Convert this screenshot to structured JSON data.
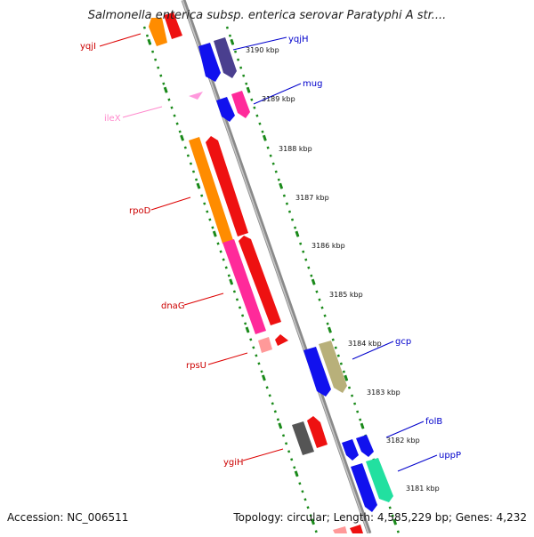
{
  "title": "Salmonella enterica subsp. enterica serovar Paratyphi A str....",
  "footer": {
    "accession": "Accession: NC_006511",
    "summary": "Topology: circular; Length: 4,585,229 bp; Genes: 4,232"
  },
  "scale_labels": [
    "3190 kbp",
    "3189 kbp",
    "3188 kbp",
    "3187 kbp",
    "3186 kbp",
    "3185 kbp",
    "3184 kbp",
    "3183 kbp",
    "3182 kbp",
    "3181 kbp"
  ],
  "genes": {
    "forward": [
      "yqjH",
      "mug",
      "gcp",
      "folB",
      "uppP"
    ],
    "reverse": [
      "yqjI",
      "ileX",
      "rpoD",
      "dnaG",
      "rpsU",
      "ygiH"
    ]
  },
  "colors": {
    "forward_label": "#0000cc",
    "reverse_label": "#cc0000",
    "trna_label": "#ff88cc",
    "backbone": "#8a8a8a",
    "tick": "#1a8a1a"
  }
}
